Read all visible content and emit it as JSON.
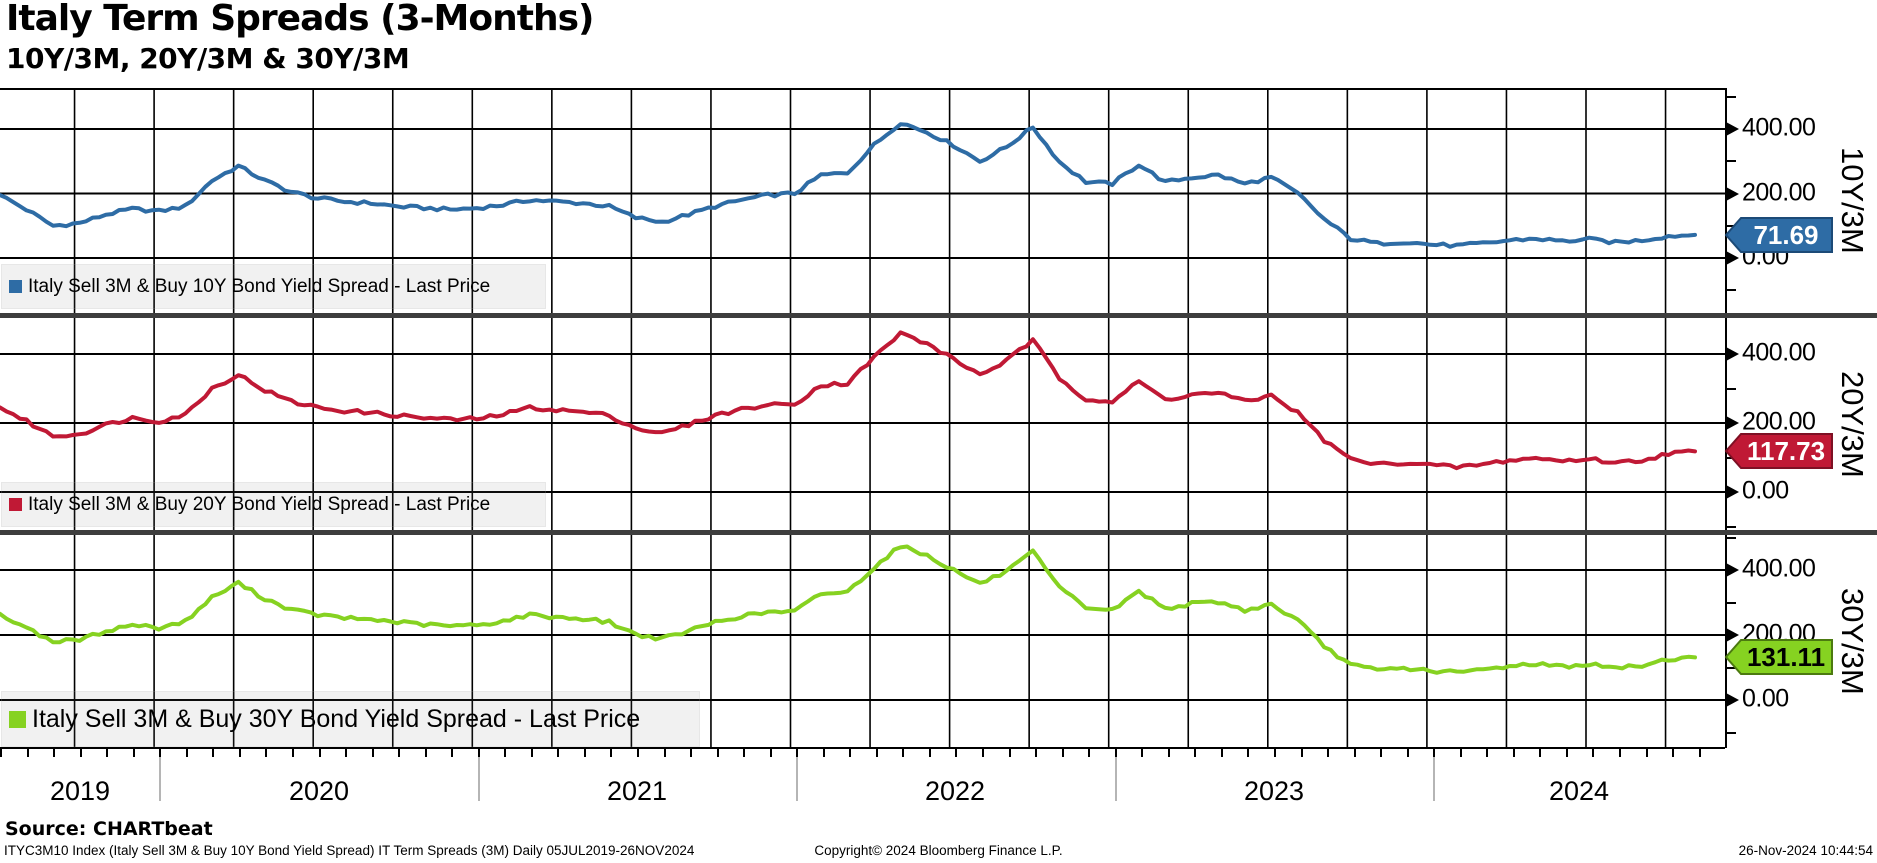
{
  "header": {
    "title": "Italy Term Spreads (3-Months)",
    "subtitle": "10Y/3M, 20Y/3M & 30Y/3M"
  },
  "footer": {
    "source": "Source: CHARTbeat",
    "left": "ITYC3M10 Index (Italy Sell 3M & Buy 10Y Bond Yield Spread) IT Term Spreads (3M)  Daily 05JUL2019-26NOV2024",
    "center": "Copyright© 2024 Bloomberg Finance L.P.",
    "right": "26-Nov-2024 10:44:54"
  },
  "colors": {
    "blue": "#2e6ca5",
    "blue_dark": "#1c4a77",
    "red": "#c01935",
    "red_dark": "#7e1024",
    "green": "#86d221",
    "green_dark": "#4c7a10",
    "divider": "#3d3d3d",
    "grid": "#000000"
  },
  "y_axis": {
    "major_tick_labels": [
      "400.00",
      "200.00",
      "0.00"
    ],
    "major_tick_values": [
      400,
      200,
      0
    ],
    "minor_tick_values": [
      500,
      300,
      100,
      -100
    ]
  },
  "x_axis": {
    "years": [
      "2019",
      "2020",
      "2021",
      "2022",
      "2023",
      "2024"
    ],
    "range_label": "05JUL2019-26NOV2024",
    "interval": "monthly"
  },
  "chart_data": {
    "type": "line",
    "title": "Italy Term Spreads (3-Months)",
    "x_start": "2019-07",
    "x_end": "2024-11",
    "x_interval": "monthly",
    "ylim_per_panel": [
      -150,
      520
    ],
    "grid": true,
    "series": [
      {
        "id": "10y3m",
        "panel_label": "10Y/3M",
        "legend": "Italy Sell 3M & Buy 10Y Bond Yield Spread - Last Price",
        "last_price": "71.69",
        "color": "#2e6ca5",
        "badge_text_color": "#ffffff",
        "values": [
          195,
          150,
          100,
          108,
          135,
          152,
          145,
          160,
          240,
          285,
          240,
          205,
          185,
          175,
          170,
          160,
          155,
          150,
          155,
          165,
          180,
          175,
          170,
          160,
          125,
          112,
          135,
          160,
          180,
          195,
          200,
          257,
          264,
          350,
          420,
          390,
          350,
          300,
          344,
          406,
          298,
          236,
          230,
          290,
          235,
          250,
          257,
          230,
          250,
          200,
          120,
          60,
          45,
          50,
          42,
          38,
          45,
          55,
          60,
          52,
          58,
          48,
          55,
          68,
          71.69
        ]
      },
      {
        "id": "20y3m",
        "panel_label": "20Y/3M",
        "legend": "Italy Sell 3M & Buy 20Y Bond Yield Spread - Last Price",
        "last_price": "117.73",
        "color": "#c01935",
        "badge_text_color": "#ffffff",
        "values": [
          245,
          205,
          162,
          168,
          195,
          215,
          205,
          225,
          300,
          340,
          295,
          262,
          245,
          235,
          230,
          222,
          215,
          210,
          212,
          225,
          245,
          238,
          232,
          222,
          185,
          170,
          195,
          222,
          240,
          252,
          255,
          310,
          315,
          390,
          460,
          430,
          385,
          340,
          380,
          440,
          330,
          270,
          262,
          320,
          268,
          282,
          288,
          262,
          280,
          230,
          150,
          95,
          80,
          85,
          78,
          72,
          80,
          92,
          98,
          90,
          96,
          85,
          92,
          112,
          117.73
        ]
      },
      {
        "id": "30y3m",
        "panel_label": "30Y/3M",
        "legend": "Italy Sell 3M & Buy 30Y Bond Yield Spread - Last Price",
        "last_price": "131.11",
        "color": "#86d221",
        "badge_text_color": "#000000",
        "values": [
          265,
          222,
          180,
          185,
          212,
          232,
          222,
          242,
          315,
          360,
          312,
          278,
          262,
          252,
          248,
          240,
          232,
          228,
          230,
          243,
          262,
          255,
          250,
          240,
          202,
          188,
          212,
          240,
          258,
          270,
          272,
          328,
          332,
          408,
          475,
          445,
          400,
          358,
          395,
          455,
          345,
          285,
          276,
          335,
          282,
          296,
          302,
          276,
          294,
          245,
          165,
          108,
          92,
          98,
          90,
          85,
          93,
          105,
          112,
          103,
          110,
          98,
          106,
          126,
          131.11
        ]
      }
    ]
  }
}
